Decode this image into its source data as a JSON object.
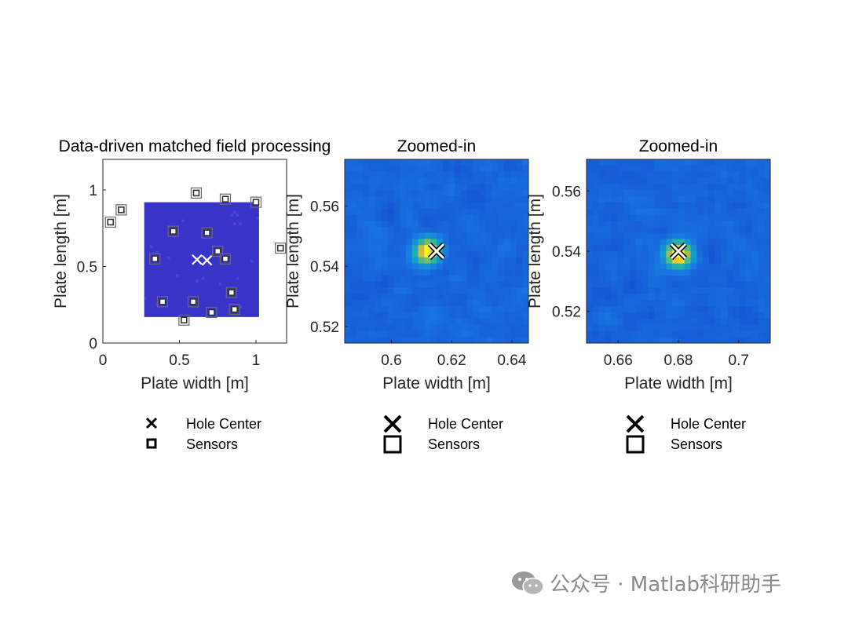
{
  "watermark": "公众号 · Matlab科研助手",
  "colors": {
    "field_dark": "#3a33c8",
    "field_mid": "#3d5fe0",
    "hot_yellow": "#f5d21e",
    "hot_green": "#3fbf87",
    "sensor": "#555555",
    "hole": "#ffffff"
  },
  "chart_data": [
    {
      "type": "heatmap",
      "title": "Data-driven matched field processing",
      "xlabel": "Plate width [m]",
      "ylabel": "Plate length [m]",
      "xlim": [
        0,
        1.2
      ],
      "ylim": [
        0,
        1.2
      ],
      "xticks": [
        0,
        0.5,
        1
      ],
      "xtick_labels": [
        "0",
        "0.5",
        "1"
      ],
      "yticks": [
        0,
        0.5,
        1
      ],
      "ytick_labels": [
        "0",
        "0.5",
        "1"
      ],
      "image_extent": {
        "x": [
          0.27,
          1.02
        ],
        "y": [
          0.17,
          0.92
        ]
      },
      "hole_centers": [
        {
          "x": 0.615,
          "y": 0.545
        },
        {
          "x": 0.68,
          "y": 0.54
        }
      ],
      "sensors": [
        {
          "x": 0.05,
          "y": 0.79
        },
        {
          "x": 0.12,
          "y": 0.87
        },
        {
          "x": 0.61,
          "y": 0.98
        },
        {
          "x": 0.8,
          "y": 0.94
        },
        {
          "x": 1.0,
          "y": 0.92
        },
        {
          "x": 1.16,
          "y": 0.62
        },
        {
          "x": 0.46,
          "y": 0.73
        },
        {
          "x": 0.68,
          "y": 0.72
        },
        {
          "x": 0.34,
          "y": 0.55
        },
        {
          "x": 0.75,
          "y": 0.6
        },
        {
          "x": 0.8,
          "y": 0.55
        },
        {
          "x": 0.84,
          "y": 0.33
        },
        {
          "x": 0.39,
          "y": 0.27
        },
        {
          "x": 0.59,
          "y": 0.27
        },
        {
          "x": 0.71,
          "y": 0.2
        },
        {
          "x": 0.86,
          "y": 0.22
        },
        {
          "x": 0.53,
          "y": 0.15
        }
      ],
      "legend": {
        "placement": "below",
        "entries": [
          "Hole Center",
          "Sensors"
        ]
      }
    },
    {
      "type": "heatmap",
      "title": "Zoomed-in",
      "xlabel": "Plate width [m]",
      "ylabel": "Plate length [m]",
      "xlim": [
        0.5845,
        0.6455
      ],
      "ylim": [
        0.5145,
        0.5755
      ],
      "xticks": [
        0.6,
        0.62,
        0.64
      ],
      "xtick_labels": [
        "0.6",
        "0.62",
        "0.64"
      ],
      "yticks": [
        0.52,
        0.54,
        0.56
      ],
      "ytick_labels": [
        "0.52",
        "0.54",
        "0.56"
      ],
      "peak": {
        "x": 0.612,
        "y": 0.545,
        "value": 0.85
      },
      "hole_center": {
        "x": 0.615,
        "y": 0.545
      },
      "legend": {
        "placement": "below",
        "entries": [
          "Hole Center",
          "Sensors"
        ]
      }
    },
    {
      "type": "heatmap",
      "title": "Zoomed-in",
      "xlabel": "Plate width [m]",
      "ylabel": "Plate length [m]",
      "xlim": [
        0.6495,
        0.7105
      ],
      "ylim": [
        0.5095,
        0.5705
      ],
      "xticks": [
        0.66,
        0.68,
        0.7
      ],
      "xtick_labels": [
        "0.66",
        "0.68",
        "0.7"
      ],
      "yticks": [
        0.52,
        0.54,
        0.56
      ],
      "ytick_labels": [
        "0.52",
        "0.54",
        "0.56"
      ],
      "peak": {
        "x": 0.68,
        "y": 0.539,
        "value": 1.0
      },
      "hole_center": {
        "x": 0.68,
        "y": 0.54
      },
      "legend": {
        "placement": "below",
        "entries": [
          "Hole Center",
          "Sensors"
        ]
      }
    }
  ]
}
